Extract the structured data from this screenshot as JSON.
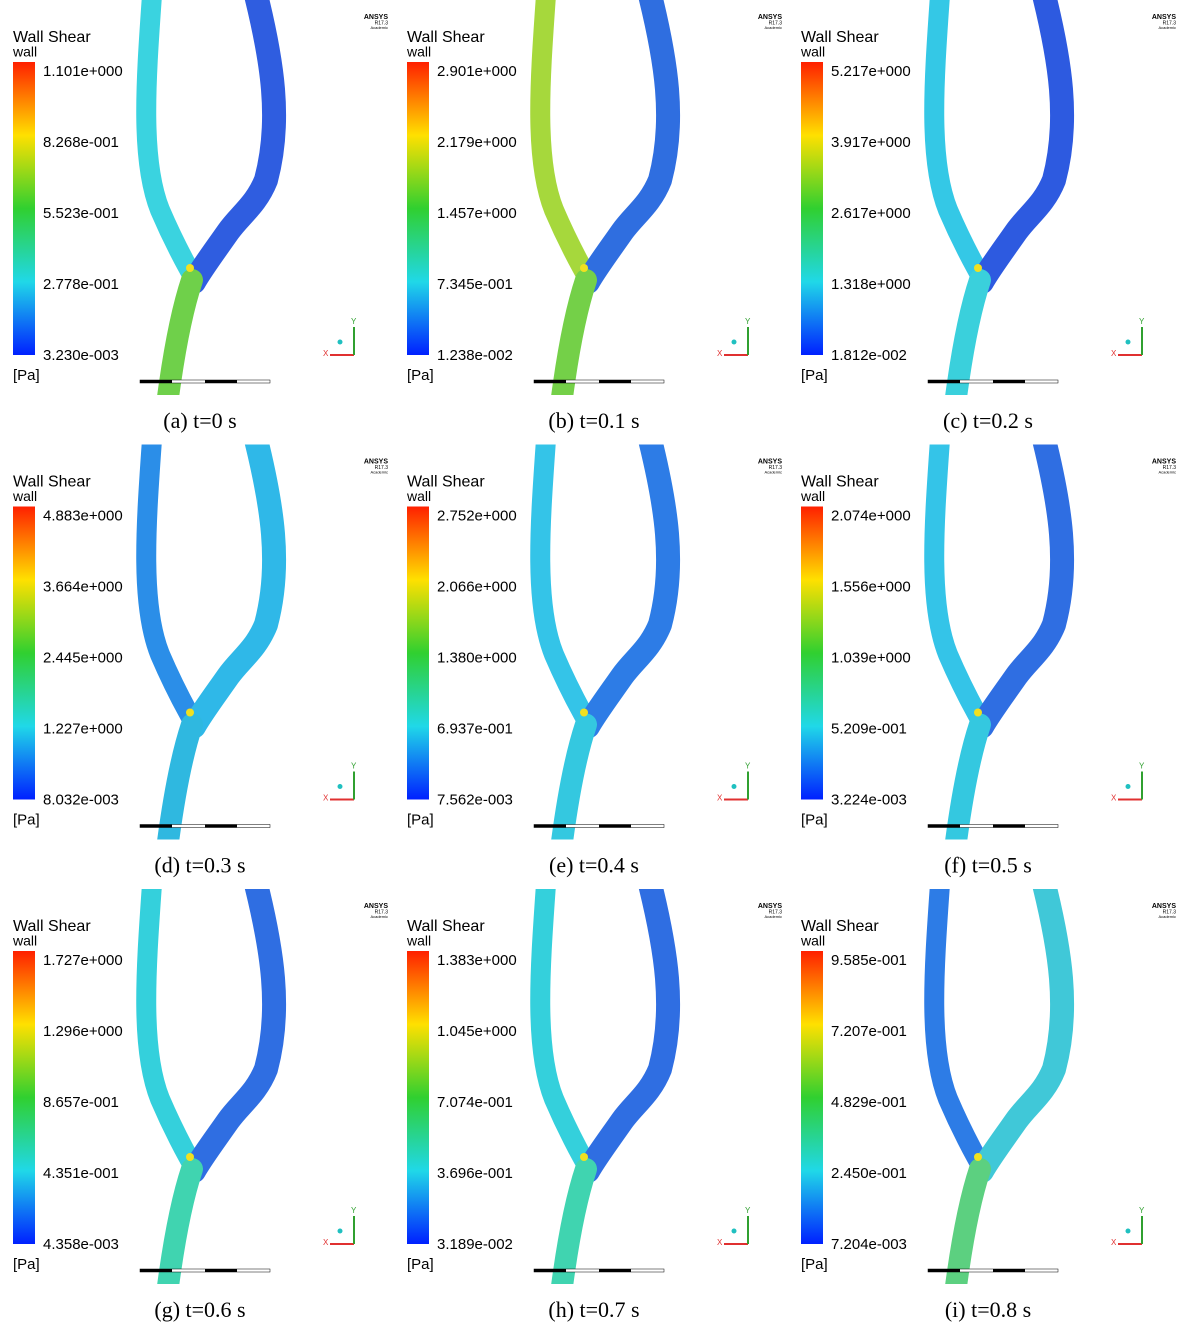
{
  "panels": [
    {
      "title": "Wall Shear",
      "variable": "wall",
      "legend": [
        "1.101e+000",
        "8.268e-001",
        "5.523e-001",
        "2.778e-001",
        "3.230e-003"
      ],
      "unit": "[Pa]",
      "caption": "(a) t=0 s"
    },
    {
      "title": "Wall Shear",
      "variable": "wall",
      "legend": [
        "2.901e+000",
        "2.179e+000",
        "1.457e+000",
        "7.345e-001",
        "1.238e-002"
      ],
      "unit": "[Pa]",
      "caption": "(b) t=0.1 s"
    },
    {
      "title": "Wall Shear",
      "variable": "wall",
      "legend": [
        "5.217e+000",
        "3.917e+000",
        "2.617e+000",
        "1.318e+000",
        "1.812e-002"
      ],
      "unit": "[Pa]",
      "caption": "(c) t=0.2 s"
    },
    {
      "title": "Wall Shear",
      "variable": "wall",
      "legend": [
        "4.883e+000",
        "3.664e+000",
        "2.445e+000",
        "1.227e+000",
        "8.032e-003"
      ],
      "unit": "[Pa]",
      "caption": "(d) t=0.3 s"
    },
    {
      "title": "Wall Shear",
      "variable": "wall",
      "legend": [
        "2.752e+000",
        "2.066e+000",
        "1.380e+000",
        "6.937e-001",
        "7.562e-003"
      ],
      "unit": "[Pa]",
      "caption": "(e) t=0.4 s"
    },
    {
      "title": "Wall Shear",
      "variable": "wall",
      "legend": [
        "2.074e+000",
        "1.556e+000",
        "1.039e+000",
        "5.209e-001",
        "3.224e-003"
      ],
      "unit": "[Pa]",
      "caption": "(f) t=0.5 s"
    },
    {
      "title": "Wall Shear",
      "variable": "wall",
      "legend": [
        "1.727e+000",
        "1.296e+000",
        "8.657e-001",
        "4.351e-001",
        "4.358e-003"
      ],
      "unit": "[Pa]",
      "caption": "(g) t=0.6 s"
    },
    {
      "title": "Wall Shear",
      "variable": "wall",
      "legend": [
        "1.383e+000",
        "1.045e+000",
        "7.074e-001",
        "3.696e-001",
        "3.189e-002"
      ],
      "unit": "[Pa]",
      "caption": "(h) t=0.7 s"
    },
    {
      "title": "Wall Shear",
      "variable": "wall",
      "legend": [
        "9.585e-001",
        "7.207e-001",
        "4.829e-001",
        "2.450e-001",
        "7.204e-003"
      ],
      "unit": "[Pa]",
      "caption": "(i) t=0.8 s"
    }
  ],
  "logo": {
    "brand": "ANSYS",
    "version": "R17.3",
    "edition": "Academic"
  },
  "triad": {
    "x": "X",
    "y": "Y"
  }
}
